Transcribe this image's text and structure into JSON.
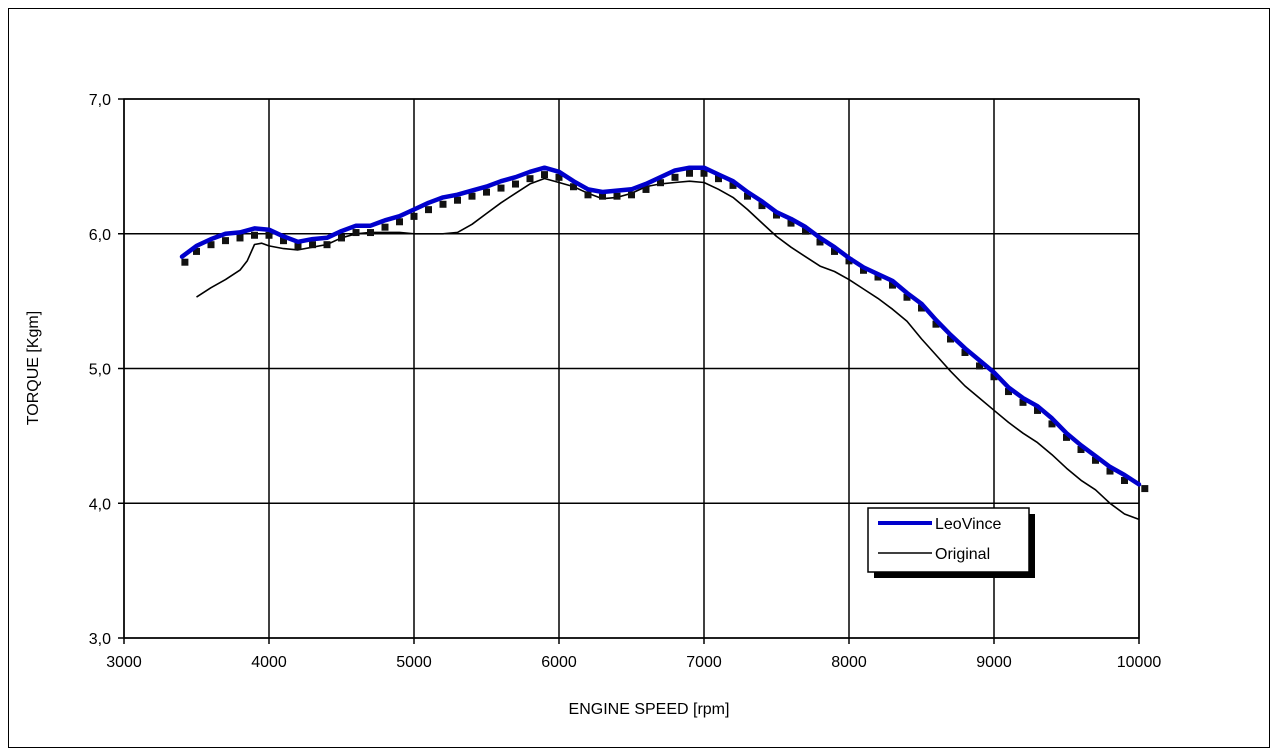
{
  "chart_data": {
    "type": "line",
    "title": "",
    "xlabel": "ENGINE SPEED [rpm]",
    "ylabel": "TORQUE [Kgm]",
    "xlim": [
      3000,
      10000
    ],
    "ylim": [
      3.0,
      7.0
    ],
    "x_ticks": [
      "3000",
      "4000",
      "5000",
      "6000",
      "7000",
      "8000",
      "9000",
      "10000"
    ],
    "y_ticks": [
      "3,0",
      "4,0",
      "5,0",
      "6,0",
      "7,0"
    ],
    "grid": true,
    "legend_position": "bottom-right",
    "series": [
      {
        "name": "LeoVince",
        "color": "#0000cc",
        "style": "thick-line",
        "x": [
          3400,
          3500,
          3600,
          3700,
          3800,
          3900,
          4000,
          4100,
          4200,
          4300,
          4400,
          4500,
          4600,
          4700,
          4800,
          4900,
          5000,
          5100,
          5200,
          5300,
          5400,
          5500,
          5600,
          5700,
          5800,
          5900,
          6000,
          6100,
          6200,
          6300,
          6400,
          6500,
          6600,
          6700,
          6800,
          6900,
          7000,
          7100,
          7200,
          7300,
          7400,
          7500,
          7600,
          7700,
          7800,
          7900,
          8000,
          8100,
          8200,
          8300,
          8400,
          8500,
          8600,
          8700,
          8800,
          8900,
          9000,
          9100,
          9200,
          9300,
          9400,
          9500,
          9600,
          9700,
          9800,
          9900,
          10000
        ],
        "y": [
          5.83,
          5.91,
          5.96,
          6.0,
          6.01,
          6.04,
          6.03,
          5.98,
          5.94,
          5.96,
          5.97,
          6.02,
          6.06,
          6.06,
          6.1,
          6.13,
          6.18,
          6.23,
          6.27,
          6.29,
          6.32,
          6.35,
          6.39,
          6.42,
          6.46,
          6.49,
          6.46,
          6.39,
          6.33,
          6.31,
          6.32,
          6.33,
          6.37,
          6.42,
          6.47,
          6.49,
          6.49,
          6.44,
          6.39,
          6.31,
          6.24,
          6.16,
          6.11,
          6.05,
          5.97,
          5.9,
          5.82,
          5.75,
          5.7,
          5.65,
          5.56,
          5.48,
          5.36,
          5.25,
          5.15,
          5.06,
          4.97,
          4.86,
          4.78,
          4.72,
          4.63,
          4.52,
          4.43,
          4.35,
          4.27,
          4.21,
          4.14
        ]
      },
      {
        "name": "",
        "color": "#111111",
        "style": "square-markers",
        "x": [
          3420,
          3500,
          3600,
          3700,
          3800,
          3900,
          4000,
          4100,
          4200,
          4300,
          4400,
          4500,
          4600,
          4700,
          4800,
          4900,
          5000,
          5100,
          5200,
          5300,
          5400,
          5500,
          5600,
          5700,
          5800,
          5900,
          6000,
          6100,
          6200,
          6300,
          6400,
          6500,
          6600,
          6700,
          6800,
          6900,
          7000,
          7100,
          7200,
          7300,
          7400,
          7500,
          7600,
          7700,
          7800,
          7900,
          8000,
          8100,
          8200,
          8300,
          8400,
          8500,
          8600,
          8700,
          8800,
          8900,
          9000,
          9100,
          9200,
          9300,
          9400,
          9500,
          9600,
          9700,
          9800,
          9900,
          10040
        ],
        "y": [
          5.8,
          5.88,
          5.93,
          5.96,
          5.98,
          6.0,
          6.0,
          5.96,
          5.92,
          5.93,
          5.93,
          5.98,
          6.02,
          6.02,
          6.06,
          6.1,
          6.14,
          6.19,
          6.23,
          6.26,
          6.29,
          6.32,
          6.35,
          6.38,
          6.42,
          6.45,
          6.43,
          6.36,
          6.3,
          6.29,
          6.29,
          6.3,
          6.34,
          6.39,
          6.43,
          6.46,
          6.46,
          6.42,
          6.37,
          6.29,
          6.22,
          6.15,
          6.09,
          6.03,
          5.95,
          5.88,
          5.81,
          5.74,
          5.69,
          5.63,
          5.54,
          5.46,
          5.34,
          5.23,
          5.13,
          5.03,
          4.95,
          4.84,
          4.76,
          4.7,
          4.6,
          4.5,
          4.41,
          4.33,
          4.25,
          4.18,
          4.12
        ]
      },
      {
        "name": "Original",
        "color": "#000000",
        "style": "thin-line",
        "x": [
          3500,
          3600,
          3700,
          3800,
          3850,
          3900,
          3950,
          4000,
          4100,
          4200,
          4300,
          4400,
          4500,
          4600,
          4700,
          4800,
          4900,
          5000,
          5100,
          5200,
          5300,
          5400,
          5500,
          5600,
          5700,
          5800,
          5900,
          6000,
          6100,
          6200,
          6300,
          6400,
          6500,
          6600,
          6700,
          6800,
          6900,
          7000,
          7100,
          7200,
          7300,
          7400,
          7500,
          7600,
          7700,
          7800,
          7900,
          8000,
          8100,
          8200,
          8300,
          8400,
          8500,
          8600,
          8700,
          8800,
          8900,
          9000,
          9100,
          9200,
          9300,
          9400,
          9500,
          9600,
          9700,
          9800,
          9900,
          10000
        ],
        "y": [
          5.53,
          5.6,
          5.66,
          5.73,
          5.8,
          5.92,
          5.93,
          5.91,
          5.89,
          5.88,
          5.9,
          5.92,
          5.97,
          6.0,
          6.01,
          6.01,
          6.01,
          6.0,
          6.0,
          6.0,
          6.01,
          6.07,
          6.15,
          6.23,
          6.3,
          6.37,
          6.41,
          6.38,
          6.35,
          6.3,
          6.26,
          6.27,
          6.3,
          6.35,
          6.37,
          6.38,
          6.39,
          6.38,
          6.33,
          6.27,
          6.18,
          6.08,
          5.98,
          5.9,
          5.83,
          5.76,
          5.72,
          5.66,
          5.59,
          5.52,
          5.44,
          5.35,
          5.22,
          5.1,
          4.98,
          4.87,
          4.78,
          4.69,
          4.6,
          4.52,
          4.45,
          4.36,
          4.26,
          4.17,
          4.1,
          4.0,
          3.92,
          3.88
        ]
      }
    ]
  }
}
